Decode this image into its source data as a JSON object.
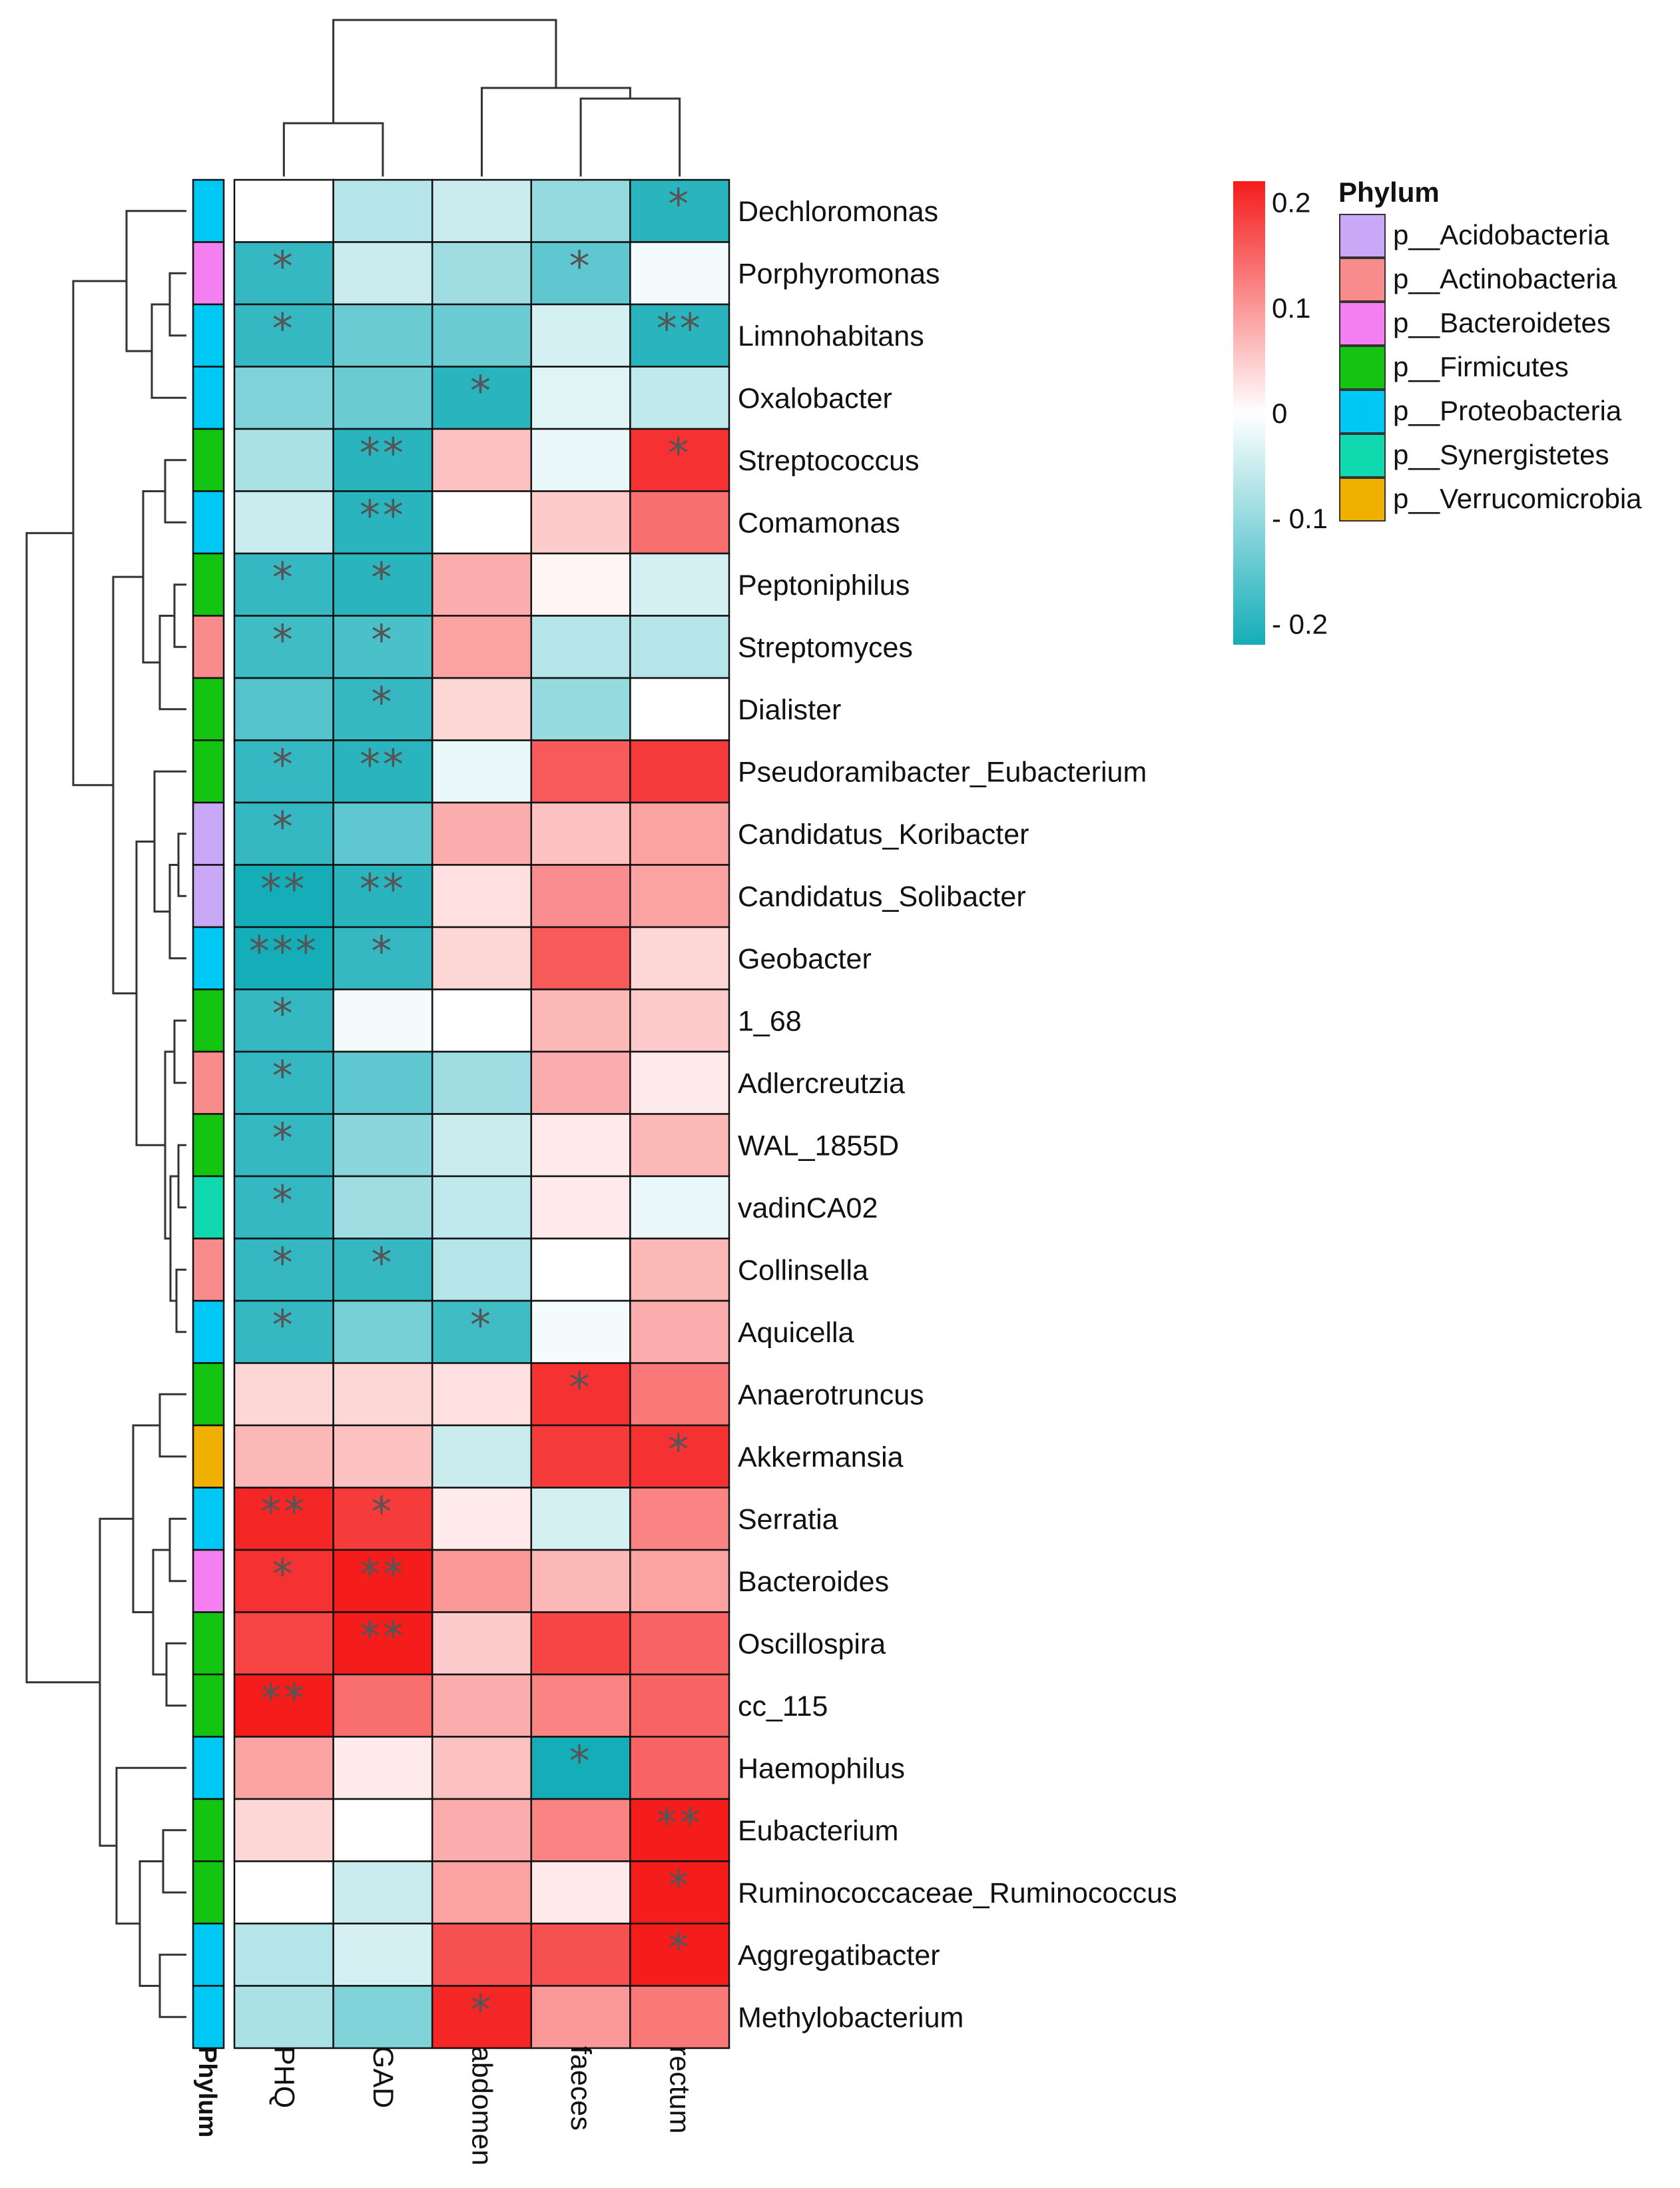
{
  "chart_data": {
    "type": "heatmap",
    "title": "",
    "columns": [
      "PHQ",
      "GAD",
      "abdomen",
      "faeces",
      "rectum"
    ],
    "rows": [
      {
        "name": "Dechloromonas",
        "phylum": "p__Proteobacteria",
        "values": [
          0.0,
          -0.07,
          -0.05,
          -0.1,
          -0.2
        ],
        "sig": [
          "",
          "",
          "",
          "",
          "*"
        ]
      },
      {
        "name": "Porphyromonas",
        "phylum": "p__Bacteroidetes",
        "values": [
          -0.19,
          -0.05,
          -0.09,
          -0.15,
          -0.01
        ],
        "sig": [
          "*",
          "",
          "",
          "*",
          ""
        ]
      },
      {
        "name": "Limnohabitans",
        "phylum": "p__Proteobacteria",
        "values": [
          -0.19,
          -0.14,
          -0.14,
          -0.04,
          -0.2
        ],
        "sig": [
          "*",
          "",
          "",
          "",
          "**"
        ]
      },
      {
        "name": "Oxalobacter",
        "phylum": "p__Proteobacteria",
        "values": [
          -0.12,
          -0.14,
          -0.2,
          -0.03,
          -0.06
        ],
        "sig": [
          "",
          "",
          "*",
          "",
          ""
        ]
      },
      {
        "name": "Streptococcus",
        "phylum": "p__Firmicutes",
        "values": [
          -0.08,
          -0.2,
          0.06,
          -0.02,
          0.2
        ],
        "sig": [
          "",
          "**",
          "",
          "",
          "*"
        ]
      },
      {
        "name": "Comamonas",
        "phylum": "p__Proteobacteria",
        "values": [
          -0.05,
          -0.2,
          0.0,
          0.05,
          0.14
        ],
        "sig": [
          "",
          "**",
          "",
          "",
          ""
        ]
      },
      {
        "name": "Peptoniphilus",
        "phylum": "p__Firmicutes",
        "values": [
          -0.19,
          -0.2,
          0.08,
          0.01,
          -0.04
        ],
        "sig": [
          "*",
          "*",
          "",
          "",
          ""
        ]
      },
      {
        "name": "Streptomyces",
        "phylum": "p__Actinobacteria",
        "values": [
          -0.18,
          -0.17,
          0.09,
          -0.07,
          -0.07
        ],
        "sig": [
          "*",
          "*",
          "",
          "",
          ""
        ]
      },
      {
        "name": "Dialister",
        "phylum": "p__Firmicutes",
        "values": [
          -0.16,
          -0.19,
          0.04,
          -0.1,
          0.0
        ],
        "sig": [
          "",
          "*",
          "",
          "",
          ""
        ]
      },
      {
        "name": "Pseudoramibacter_Eubacterium",
        "phylum": "p__Firmicutes",
        "values": [
          -0.19,
          -0.2,
          -0.02,
          0.16,
          0.19
        ],
        "sig": [
          "*",
          "**",
          "",
          "",
          ""
        ]
      },
      {
        "name": "Candidatus_Koribacter",
        "phylum": "p__Acidobacteria",
        "values": [
          -0.19,
          -0.15,
          0.08,
          0.06,
          0.09
        ],
        "sig": [
          "*",
          "",
          "",
          "",
          ""
        ]
      },
      {
        "name": "Candidatus_Solibacter",
        "phylum": "p__Acidobacteria",
        "values": [
          -0.22,
          -0.2,
          0.03,
          0.11,
          0.09
        ],
        "sig": [
          "**",
          "**",
          "",
          "",
          ""
        ]
      },
      {
        "name": "Geobacter",
        "phylum": "p__Proteobacteria",
        "values": [
          -0.22,
          -0.19,
          0.04,
          0.16,
          0.04
        ],
        "sig": [
          "***",
          "*",
          "",
          "",
          ""
        ]
      },
      {
        "name": "1_68",
        "phylum": "p__Firmicutes",
        "values": [
          -0.19,
          -0.01,
          0.0,
          0.07,
          0.05
        ],
        "sig": [
          "*",
          "",
          "",
          "",
          ""
        ]
      },
      {
        "name": "Adlercreutzia",
        "phylum": "p__Actinobacteria",
        "values": [
          -0.19,
          -0.15,
          -0.09,
          0.08,
          0.02
        ],
        "sig": [
          "*",
          "",
          "",
          "",
          ""
        ]
      },
      {
        "name": "WAL_1855D",
        "phylum": "p__Firmicutes",
        "values": [
          -0.19,
          -0.11,
          -0.05,
          0.02,
          0.07
        ],
        "sig": [
          "*",
          "",
          "",
          "",
          ""
        ]
      },
      {
        "name": "vadinCA02",
        "phylum": "p__Synergistetes",
        "values": [
          -0.19,
          -0.09,
          -0.06,
          0.02,
          -0.02
        ],
        "sig": [
          "*",
          "",
          "",
          "",
          ""
        ]
      },
      {
        "name": "Collinsella",
        "phylum": "p__Actinobacteria",
        "values": [
          -0.19,
          -0.19,
          -0.07,
          0.0,
          0.07
        ],
        "sig": [
          "*",
          "*",
          "",
          "",
          ""
        ]
      },
      {
        "name": "Aquicella",
        "phylum": "p__Proteobacteria",
        "values": [
          -0.19,
          -0.13,
          -0.18,
          -0.01,
          0.08
        ],
        "sig": [
          "*",
          "",
          "*",
          "",
          ""
        ]
      },
      {
        "name": "Anaerotruncus",
        "phylum": "p__Firmicutes",
        "values": [
          0.04,
          0.04,
          0.03,
          0.2,
          0.13
        ],
        "sig": [
          "",
          "",
          "",
          "*",
          ""
        ]
      },
      {
        "name": "Akkermansia",
        "phylum": "p__Verrucomicrobia",
        "values": [
          0.07,
          0.06,
          -0.05,
          0.19,
          0.2
        ],
        "sig": [
          "",
          "",
          "",
          "",
          "*"
        ]
      },
      {
        "name": "Serratia",
        "phylum": "p__Proteobacteria",
        "values": [
          0.21,
          0.19,
          0.02,
          -0.04,
          0.12
        ],
        "sig": [
          "**",
          "*",
          "",
          "",
          ""
        ]
      },
      {
        "name": "Bacteroides",
        "phylum": "p__Bacteroidetes",
        "values": [
          0.2,
          0.22,
          0.1,
          0.07,
          0.09
        ],
        "sig": [
          "*",
          "**",
          "",
          "",
          ""
        ]
      },
      {
        "name": "Oscillospira",
        "phylum": "p__Firmicutes",
        "values": [
          0.18,
          0.22,
          0.05,
          0.18,
          0.15
        ],
        "sig": [
          "",
          "**",
          "",
          "",
          ""
        ]
      },
      {
        "name": "cc_115",
        "phylum": "p__Firmicutes",
        "values": [
          0.22,
          0.14,
          0.08,
          0.12,
          0.15
        ],
        "sig": [
          "**",
          "",
          "",
          "",
          ""
        ]
      },
      {
        "name": "Haemophilus",
        "phylum": "p__Proteobacteria",
        "values": [
          0.09,
          0.02,
          0.06,
          -0.22,
          0.15
        ],
        "sig": [
          "",
          "",
          "",
          "*",
          ""
        ]
      },
      {
        "name": "Eubacterium",
        "phylum": "p__Firmicutes",
        "values": [
          0.04,
          0.0,
          0.08,
          0.12,
          0.22
        ],
        "sig": [
          "",
          "",
          "",
          "",
          "**"
        ]
      },
      {
        "name": "Ruminococcaceae_Ruminococcus",
        "phylum": "p__Firmicutes",
        "values": [
          0.0,
          -0.05,
          0.09,
          0.02,
          0.22
        ],
        "sig": [
          "",
          "",
          "",
          "",
          "*"
        ]
      },
      {
        "name": "Aggregatibacter",
        "phylum": "p__Proteobacteria",
        "values": [
          -0.07,
          -0.04,
          0.17,
          0.17,
          0.22
        ],
        "sig": [
          "",
          "",
          "",
          "",
          "*"
        ]
      },
      {
        "name": "Methylobacterium",
        "phylum": "p__Proteobacteria",
        "values": [
          -0.08,
          -0.12,
          0.21,
          0.1,
          0.13
        ],
        "sig": [
          "",
          "",
          "*",
          "",
          ""
        ]
      }
    ],
    "color_scale": {
      "min": -0.22,
      "max": 0.22,
      "low_color": "#15adb8",
      "mid_color": "#ffffff",
      "high_color": "#f51c1c",
      "ticks": [
        {
          "value": 0.2,
          "label": "0.2"
        },
        {
          "value": 0.1,
          "label": "0.1"
        },
        {
          "value": 0,
          "label": "0"
        },
        {
          "value": -0.1,
          "label": "- 0.1"
        },
        {
          "value": -0.2,
          "label": "- 0.2"
        }
      ]
    },
    "annotation_label": "Phylum",
    "legend": {
      "title": "Phylum",
      "entries": [
        {
          "label": "p__Acidobacteria",
          "color": "#c9a9f7"
        },
        {
          "label": "p__Actinobacteria",
          "color": "#f88c8c"
        },
        {
          "label": "p__Bacteroidetes",
          "color": "#f47ff0"
        },
        {
          "label": "p__Firmicutes",
          "color": "#13c410"
        },
        {
          "label": "p__Proteobacteria",
          "color": "#00c8f5"
        },
        {
          "label": "p__Synergistetes",
          "color": "#10d9b0"
        },
        {
          "label": "p__Verrucomicrobia",
          "color": "#f0b000"
        }
      ]
    }
  }
}
